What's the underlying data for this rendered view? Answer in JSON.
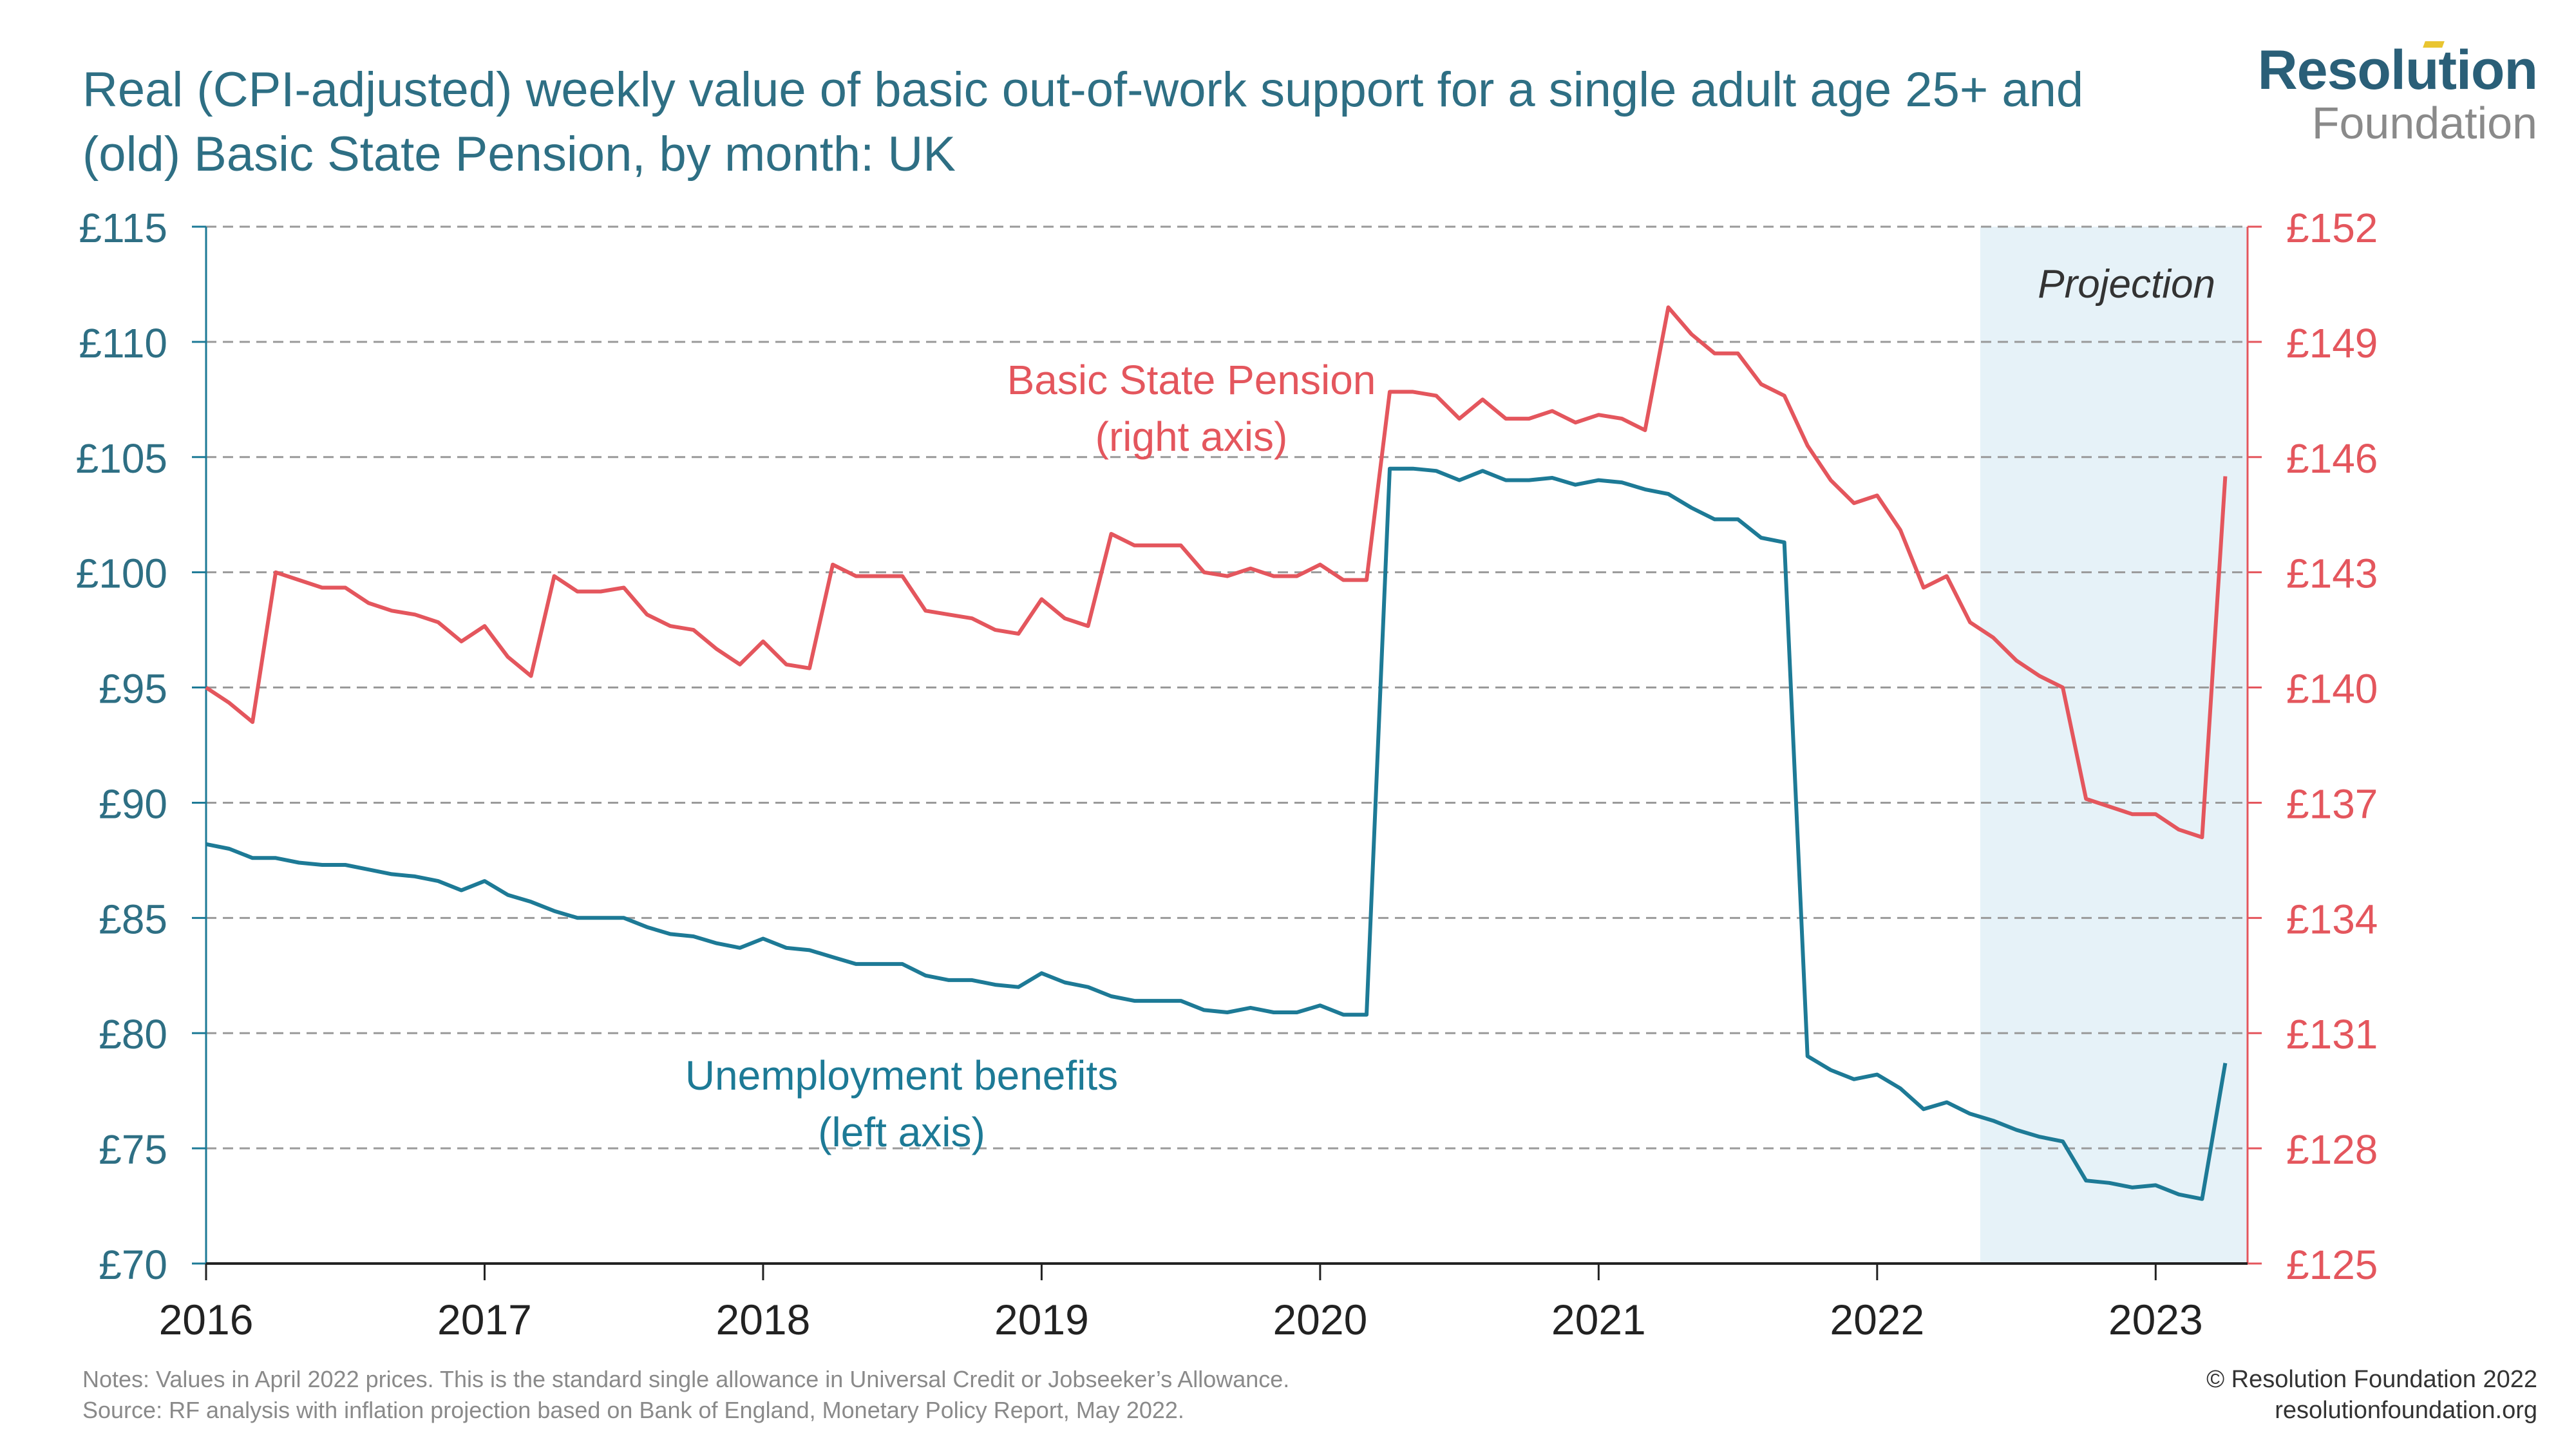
{
  "title": "Real (CPI-adjusted) weekly value of basic out-of-work support for a single adult age 25+ and (old) Basic State Pension, by month: UK",
  "logo": {
    "line1": "Resolution",
    "line2": "Foundation"
  },
  "notes": {
    "line1": "Notes:  Values in April 2022 prices. This is the standard single allowance in Universal Credit or Jobseeker’s Allowance.",
    "line2": "Source: RF analysis with inflation projection based on Bank of England, Monetary Policy Report, May 2022."
  },
  "copyright": {
    "line1": "© Resolution Foundation 2022",
    "line2": "resolutionfoundation.org"
  },
  "colors": {
    "teal": "#1d7a96",
    "red": "#e4565d",
    "shade": "#e6f2f8",
    "grid": "#9a9a9a",
    "axis_left": "#2e6f84"
  },
  "chart_data": {
    "type": "line",
    "x_tick_labels": [
      "2016",
      "2017",
      "2018",
      "2019",
      "2020",
      "2021",
      "2022",
      "2023"
    ],
    "y_left": {
      "range": [
        70,
        115
      ],
      "tick_labels": [
        "£70",
        "£75",
        "£80",
        "£85",
        "£90",
        "£95",
        "£100",
        "£105",
        "£110",
        "£115"
      ]
    },
    "y_right": {
      "range": [
        125,
        152
      ],
      "tick_labels": [
        "£125",
        "£128",
        "£131",
        "£134",
        "£137",
        "£140",
        "£143",
        "£146",
        "£149",
        "£152"
      ]
    },
    "grid": true,
    "shaded_region": {
      "label": "Projection",
      "x_start": 2022.37,
      "x_end": 2023.33
    },
    "annotations": [
      {
        "series": "Basic State Pension",
        "lines": [
          "Basic State Pension",
          "(right axis)"
        ]
      },
      {
        "series": "Unemployment benefits",
        "lines": [
          "Unemployment benefits",
          "(left axis)"
        ]
      }
    ],
    "series": [
      {
        "name": "Basic State Pension",
        "axis": "right",
        "start": 2016.0,
        "step_months": 1,
        "values": [
          140.0,
          139.6,
          139.1,
          143.0,
          142.8,
          142.6,
          142.6,
          142.2,
          142.0,
          141.9,
          141.7,
          141.2,
          141.6,
          140.8,
          140.3,
          142.9,
          142.5,
          142.5,
          142.6,
          141.9,
          141.6,
          141.5,
          141.0,
          140.6,
          141.2,
          140.6,
          140.5,
          143.2,
          142.9,
          142.9,
          142.9,
          142.0,
          141.9,
          141.8,
          141.5,
          141.4,
          142.3,
          141.8,
          141.6,
          144.0,
          143.7,
          143.7,
          143.7,
          143.0,
          142.9,
          143.1,
          142.9,
          142.9,
          143.2,
          142.8,
          142.8,
          147.7,
          147.7,
          147.6,
          147.0,
          147.5,
          147.0,
          147.0,
          147.2,
          146.9,
          147.1,
          147.0,
          146.7,
          149.9,
          149.2,
          148.7,
          148.7,
          147.9,
          147.6,
          146.3,
          145.4,
          144.8,
          145.0,
          144.1,
          142.6,
          142.9,
          141.7,
          141.3,
          140.7,
          140.3,
          140.0,
          137.1,
          136.9,
          136.7,
          136.7,
          136.3,
          136.1,
          145.5
        ]
      },
      {
        "name": "Unemployment benefits",
        "axis": "left",
        "start": 2016.0,
        "step_months": 1,
        "values": [
          88.2,
          88.0,
          87.6,
          87.6,
          87.4,
          87.3,
          87.3,
          87.1,
          86.9,
          86.8,
          86.6,
          86.2,
          86.6,
          86.0,
          85.7,
          85.3,
          85.0,
          85.0,
          85.0,
          84.6,
          84.3,
          84.2,
          83.9,
          83.7,
          84.1,
          83.7,
          83.6,
          83.3,
          83.0,
          83.0,
          83.0,
          82.5,
          82.3,
          82.3,
          82.1,
          82.0,
          82.6,
          82.2,
          82.0,
          81.6,
          81.4,
          81.4,
          81.4,
          81.0,
          80.9,
          81.1,
          80.9,
          80.9,
          81.2,
          80.8,
          80.8,
          104.5,
          104.5,
          104.4,
          104.0,
          104.4,
          104.0,
          104.0,
          104.1,
          103.8,
          104.0,
          103.9,
          103.6,
          103.4,
          102.8,
          102.3,
          102.3,
          101.5,
          101.3,
          79.0,
          78.4,
          78.0,
          78.2,
          77.6,
          76.7,
          77.0,
          76.5,
          76.2,
          75.8,
          75.5,
          75.3,
          73.6,
          73.5,
          73.3,
          73.4,
          73.0,
          72.8,
          78.7
        ]
      }
    ]
  }
}
